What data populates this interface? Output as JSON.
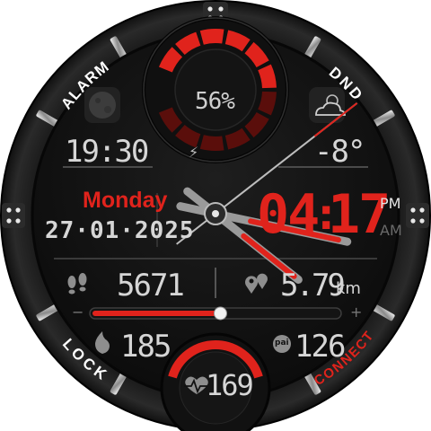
{
  "bezel": {
    "alarm_label": "ALARM",
    "dnd_label": "DND",
    "lock_label": "LOCK",
    "connect_label": "CONNECT"
  },
  "battery": {
    "percent_label": "56%",
    "level": 0.56
  },
  "moon": {
    "icon": "moon-phase-icon"
  },
  "alarm_time": "19:30",
  "weather": {
    "icon": "cloud-sun-icon",
    "temperature": "-8°"
  },
  "date": {
    "weekday": "Monday",
    "full": "27·01·2025"
  },
  "digital_time": {
    "hours": "04",
    "separator": ":",
    "minutes": "17",
    "pm": "PM",
    "am": "AM"
  },
  "steps": {
    "icon": "footsteps-icon",
    "value": "5671",
    "goal_fraction": 0.52
  },
  "distance": {
    "icon": "location-pin-icon",
    "value": "5.79",
    "unit": "km"
  },
  "slider": {
    "minus": "−",
    "plus": "+"
  },
  "calories": {
    "icon": "flame-icon",
    "value": "185"
  },
  "pai": {
    "icon": "pai-icon",
    "badge": "pai",
    "value": "126"
  },
  "heart_rate": {
    "icon": "heart-rate-icon",
    "value": "169"
  },
  "colors": {
    "accent": "#e0231c",
    "text": "#d6d6d6",
    "background": "#0f0f0f"
  },
  "analog": {
    "hour": 4,
    "minute": 17
  }
}
